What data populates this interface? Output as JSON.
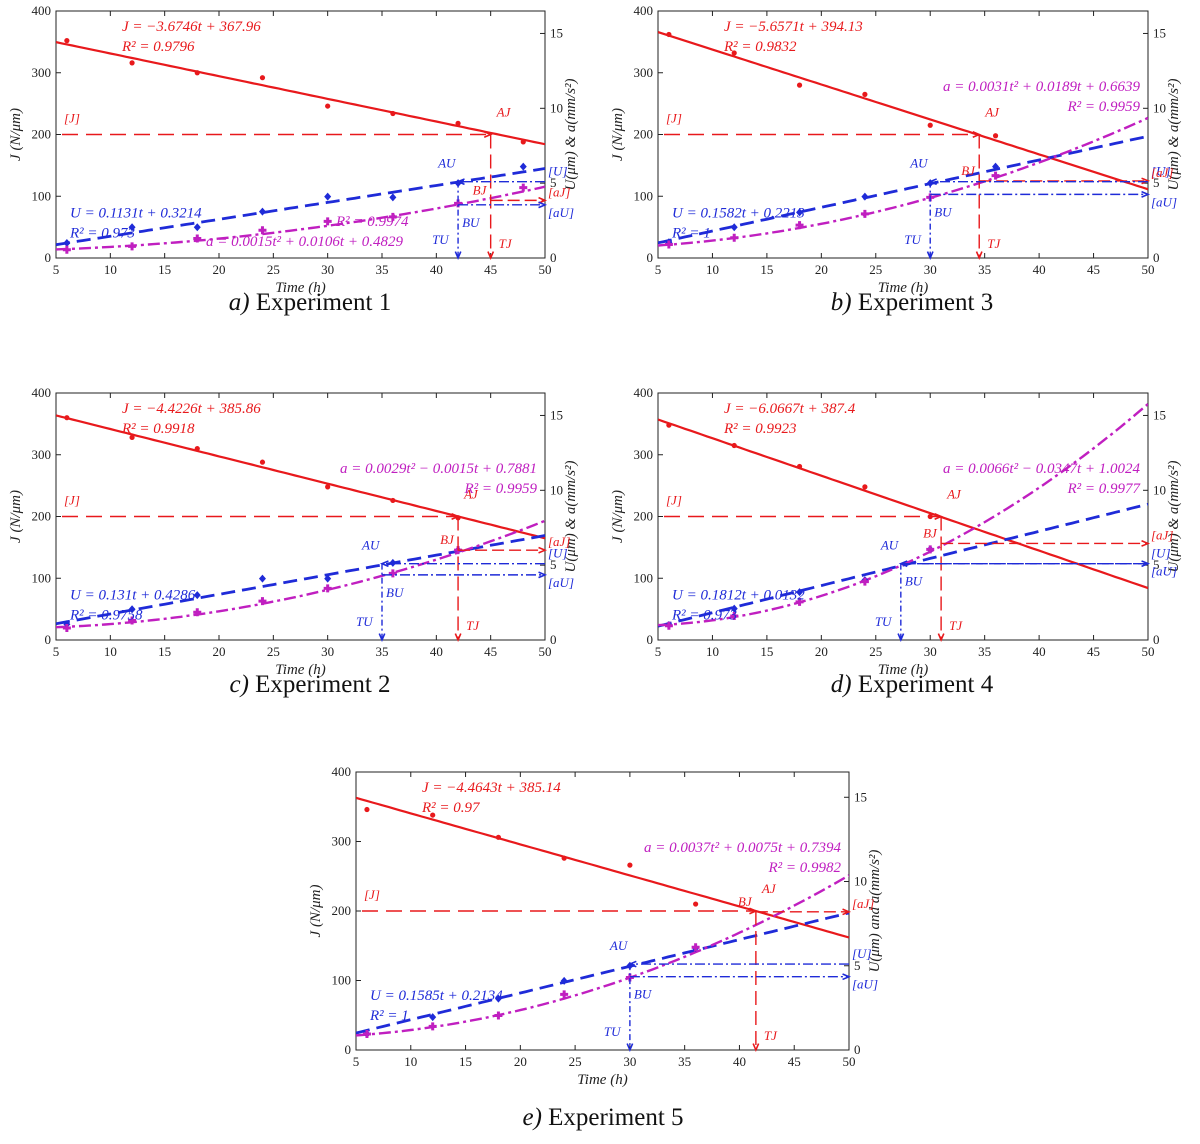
{
  "colors": {
    "J": "#e8191c",
    "U": "#1f2bd8",
    "a": "#c01fc0",
    "axis": "#222222"
  },
  "common": {
    "xlabel": "Time (h)",
    "ylabel_left": "J (N/μm)",
    "ylabel_right": "U(μm) & a(mm/s²)",
    "ylabel_right_e": "U(μm) and a(mm/s²)",
    "xlim": [
      5,
      50
    ],
    "ylim_left": [
      0,
      400
    ],
    "ylim_right": [
      0,
      16.5
    ],
    "xticks": [
      "5",
      "10",
      "15",
      "20",
      "25",
      "30",
      "35",
      "40",
      "45",
      "50"
    ],
    "yticks_left": [
      "0",
      "100",
      "200",
      "300",
      "400"
    ],
    "yticks_right": [
      "0",
      "5",
      "10",
      "15"
    ],
    "labels": {
      "J_limit": "[J]",
      "U_limit": "[U]",
      "aJ": "[aJ]",
      "aU": "[aU]",
      "AJ": "AJ",
      "AU": "AU",
      "BJ": "BJ",
      "BU": "BU",
      "TJ": "TJ",
      "TU": "TU"
    }
  },
  "chart_data": [
    {
      "type": "line",
      "caption_letter": "a)",
      "caption_text": "Experiment 1",
      "title": "a) Experiment 1",
      "J_eq": "J = −3.6746t + 367.96",
      "J_r2": "R² = 0.9796",
      "U_eq": "U = 0.1131t + 0.3214",
      "U_r2": "R² = 0.973",
      "a_eq": "a = 0.0015t² + 0.0106t + 0.4829",
      "a_r2": "R² = 0.9974",
      "J_fit": [
        -3.6746,
        367.96
      ],
      "U_fit": [
        0.1131,
        0.3214
      ],
      "a_fit": [
        0.0015,
        0.0106,
        0.4829
      ],
      "x": [
        6,
        12,
        18,
        24,
        30,
        36,
        42,
        48
      ],
      "J_points": [
        352,
        316,
        300,
        292,
        246,
        234,
        218,
        188
      ],
      "U_points": [
        1.0,
        2.05,
        2.05,
        3.1,
        4.1,
        4.05,
        5.0,
        6.1
      ],
      "a_points": [
        0.55,
        0.78,
        1.3,
        1.85,
        2.45,
        2.75,
        3.65,
        4.7
      ],
      "J_limit": 200,
      "U_limit": 5.1,
      "aJ_limit": 3.85,
      "aU_limit": 3.55,
      "TU": 42,
      "TJ": 45
    },
    {
      "type": "line",
      "caption_letter": "b)",
      "caption_text": "Experiment 3",
      "title": "b) Experiment 3",
      "J_eq": "J = −5.6571t + 394.13",
      "J_r2": "R² = 0.9832",
      "U_eq": "U = 0.1582t + 0.2213",
      "U_r2": "R² = 1",
      "a_eq": "a = 0.0031t² + 0.0189t + 0.6639",
      "a_r2": "R² = 0.9959",
      "J_fit": [
        -5.6571,
        394.13
      ],
      "U_fit": [
        0.1582,
        0.2213
      ],
      "a_fit": [
        0.0031,
        0.0189,
        0.6639
      ],
      "x": [
        6,
        12,
        18,
        24,
        30,
        36
      ],
      "J_points": [
        362,
        332,
        280,
        265,
        215,
        198
      ],
      "U_points": [
        1.05,
        2.05,
        3.05,
        4.1,
        5.0,
        6.1
      ],
      "a_points": [
        0.9,
        1.35,
        2.2,
        2.95,
        4.05,
        5.5
      ],
      "J_limit": 200,
      "U_limit": 5.1,
      "aJ_limit": 5.15,
      "aU_limit": 4.25,
      "TU": 30,
      "TJ": 34.5
    },
    {
      "type": "line",
      "caption_letter": "c)",
      "caption_text": "Experiment 2",
      "title": "c) Experiment 2",
      "J_eq": "J = −4.4226t + 385.86",
      "J_r2": "R² = 0.9918",
      "U_eq": "U = 0.131t + 0.4286",
      "U_r2": "R² = 0.9758",
      "a_eq": "a = 0.0029t² − 0.0015t + 0.7881",
      "a_r2": "R² = 0.9959",
      "J_fit": [
        -4.4226,
        385.86
      ],
      "U_fit": [
        0.131,
        0.4286
      ],
      "a_fit": [
        0.0029,
        -0.0015,
        0.7881
      ],
      "x": [
        6,
        12,
        18,
        24,
        30,
        36,
        42
      ],
      "J_points": [
        360,
        328,
        310,
        288,
        248,
        226,
        198
      ],
      "U_points": [
        1.05,
        2.05,
        3.0,
        4.1,
        4.1,
        5.15,
        6.0
      ],
      "a_points": [
        0.8,
        1.3,
        1.85,
        2.6,
        3.45,
        4.45,
        6.0
      ],
      "J_limit": 200,
      "U_limit": 5.1,
      "aJ_limit": 6.0,
      "aU_limit": 4.35,
      "TU": 35,
      "TJ": 42
    },
    {
      "type": "line",
      "caption_letter": "d)",
      "caption_text": "Experiment 4",
      "title": "d) Experiment 4",
      "J_eq": "J = −6.0667t + 387.4",
      "J_r2": "R² = 0.9923",
      "U_eq": "U = 0.1812t + 0.0132",
      "U_r2": "R² = 0.973",
      "a_eq": "a = 0.0066t² − 0.0347t + 1.0024",
      "a_r2": "R² = 0.9977",
      "J_fit": [
        -6.0667,
        387.4
      ],
      "U_fit": [
        0.1812,
        0.0132
      ],
      "a_fit": [
        0.0066,
        -0.0347,
        1.0024
      ],
      "x": [
        6,
        12,
        18,
        24,
        30
      ],
      "J_points": [
        348,
        315,
        281,
        248,
        200
      ],
      "U_points": [
        1.0,
        2.1,
        3.2,
        4.0,
        6.05
      ],
      "a_points": [
        0.95,
        1.6,
        2.55,
        3.9,
        6.05
      ],
      "J_limit": 200,
      "U_limit": 5.1,
      "aJ_limit": 6.45,
      "aU_limit": 5.1,
      "TU": 27.3,
      "TJ": 31
    },
    {
      "type": "line",
      "caption_letter": "e)",
      "caption_text": "Experiment 5",
      "title": "e) Experiment 5",
      "J_eq": "J = −4.4643t + 385.14",
      "J_r2": "R² = 0.97",
      "U_eq": "U = 0.1585t + 0.2134",
      "U_r2": "R² = 1",
      "a_eq": "a = 0.0037t² + 0.0075t + 0.7394",
      "a_r2": "R² = 0.9982",
      "J_fit": [
        -4.4643,
        385.14
      ],
      "U_fit": [
        0.1585,
        0.2134
      ],
      "a_fit": [
        0.0037,
        0.0075,
        0.7394
      ],
      "x": [
        6,
        12,
        18,
        24,
        30,
        36
      ],
      "J_points": [
        346,
        338,
        306,
        276,
        266,
        210
      ],
      "U_points": [
        0.95,
        1.95,
        3.05,
        4.1,
        5.0,
        6.05
      ],
      "a_points": [
        0.95,
        1.4,
        2.05,
        3.3,
        4.3,
        6.1
      ],
      "J_limit": 200,
      "U_limit": 5.1,
      "aJ_limit": 8.2,
      "aU_limit": 4.35,
      "TU": 30,
      "TJ": 41.5
    }
  ]
}
